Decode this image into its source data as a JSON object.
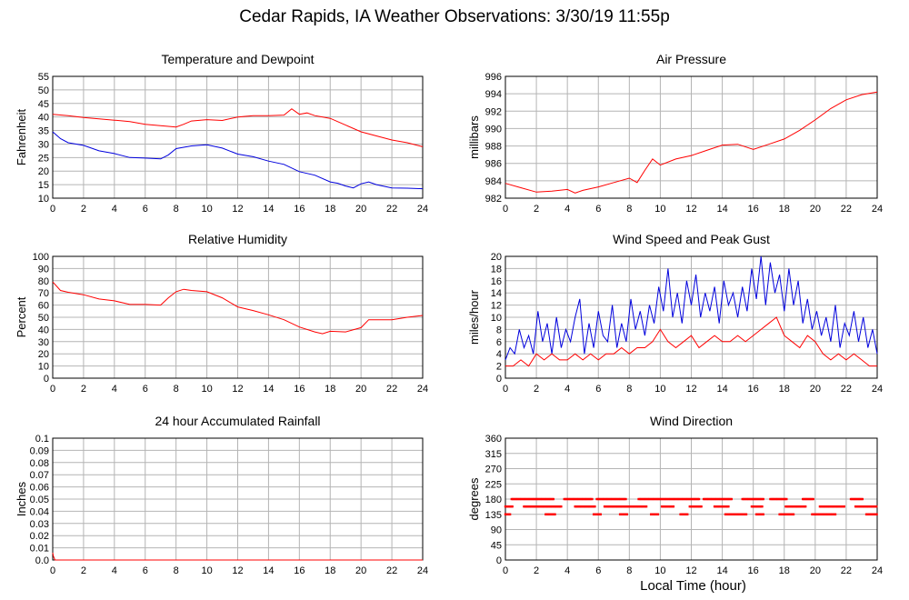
{
  "title": "Cedar Rapids, IA Weather Observations: 3/30/19 11:55p",
  "xlabel": "Local Time (hour)",
  "colors": {
    "red": "#ff0000",
    "blue": "#0000dd",
    "grid": "#b4b4b4"
  },
  "chart_data": [
    {
      "type": "line",
      "title": "Temperature and Dewpoint",
      "ylabel": "Fahrenheit",
      "xlim": [
        0,
        24
      ],
      "ylim": [
        10,
        55
      ],
      "xticks": [
        0,
        2,
        4,
        6,
        8,
        10,
        12,
        14,
        16,
        18,
        20,
        22,
        24
      ],
      "yticks": [
        10,
        15,
        20,
        25,
        30,
        35,
        40,
        45,
        50,
        55
      ],
      "ytick_labels": [
        "10",
        "15",
        "20",
        "25",
        "30",
        "35",
        "40",
        "45",
        "50",
        "55"
      ],
      "grid": true,
      "series": [
        {
          "color": "#ff0000",
          "x": [
            0,
            1,
            2,
            3,
            4,
            5,
            6,
            7,
            8,
            8.5,
            9,
            10,
            11,
            12,
            13,
            14,
            15,
            15.5,
            16,
            16.5,
            17,
            18,
            19,
            20,
            21,
            22,
            23,
            24
          ],
          "y": [
            41,
            40.5,
            39.8,
            39.3,
            38.8,
            38.3,
            37.3,
            36.8,
            36.3,
            37.3,
            38.5,
            39,
            38.7,
            40,
            40.5,
            40.5,
            40.7,
            43,
            41,
            41.5,
            40.5,
            39.5,
            37,
            34.5,
            33,
            31.5,
            30.5,
            29
          ]
        },
        {
          "color": "#0000dd",
          "x": [
            0,
            0.5,
            1,
            2,
            3,
            4,
            5,
            6,
            7,
            7.5,
            8,
            9,
            10,
            11,
            12,
            13,
            14,
            15,
            16,
            17,
            18,
            18.5,
            19,
            19.5,
            20,
            20.5,
            21,
            22,
            23,
            24
          ],
          "y": [
            34.5,
            32,
            30.5,
            29.5,
            27.5,
            26.5,
            25,
            24.8,
            24.5,
            26,
            28.3,
            29.3,
            29.7,
            28.5,
            26.3,
            25.3,
            23.7,
            22.5,
            19.8,
            18.5,
            16,
            15.5,
            14.5,
            13.8,
            15.3,
            16,
            15,
            13.8,
            13.7,
            13.5
          ]
        }
      ]
    },
    {
      "type": "line",
      "title": "Air Pressure",
      "ylabel": "millibars",
      "xlim": [
        0,
        24
      ],
      "ylim": [
        982,
        996
      ],
      "xticks": [
        0,
        2,
        4,
        6,
        8,
        10,
        12,
        14,
        16,
        18,
        20,
        22,
        24
      ],
      "yticks": [
        982,
        984,
        986,
        988,
        990,
        992,
        994,
        996
      ],
      "ytick_labels": [
        "982",
        "984",
        "986",
        "988",
        "990",
        "992",
        "994",
        "996"
      ],
      "grid": true,
      "series": [
        {
          "color": "#ff0000",
          "x": [
            0,
            1,
            2,
            3,
            4,
            4.5,
            5,
            6,
            7,
            8,
            8.5,
            9,
            9.5,
            10,
            11,
            12,
            13,
            14,
            15,
            16,
            17,
            18,
            19,
            20,
            21,
            22,
            23,
            24
          ],
          "y": [
            983.7,
            983.2,
            982.7,
            982.8,
            983,
            982.6,
            982.9,
            983.3,
            983.8,
            984.3,
            983.8,
            985.2,
            986.5,
            985.8,
            986.5,
            986.9,
            987.5,
            988.1,
            988.2,
            987.6,
            988.2,
            988.8,
            989.8,
            991,
            992.3,
            993.3,
            993.9,
            994.2
          ]
        }
      ]
    },
    {
      "type": "line",
      "title": "Relative Humidity",
      "ylabel": "Percent",
      "xlim": [
        0,
        24
      ],
      "ylim": [
        0,
        100
      ],
      "xticks": [
        0,
        2,
        4,
        6,
        8,
        10,
        12,
        14,
        16,
        18,
        20,
        22,
        24
      ],
      "yticks": [
        0,
        10,
        20,
        30,
        40,
        50,
        60,
        70,
        80,
        90,
        100
      ],
      "ytick_labels": [
        "0",
        "10",
        "20",
        "30",
        "40",
        "50",
        "60",
        "70",
        "80",
        "90",
        "100"
      ],
      "grid": true,
      "series": [
        {
          "color": "#ff0000",
          "x": [
            0,
            0.5,
            1,
            2,
            3,
            4,
            5,
            6,
            7,
            7.5,
            8,
            8.5,
            9,
            10,
            11,
            12,
            13,
            14,
            15,
            16,
            17,
            17.5,
            18,
            19,
            20,
            20.5,
            21,
            22,
            23,
            24
          ],
          "y": [
            79,
            72,
            70.5,
            68.5,
            65,
            63.5,
            60.5,
            60.5,
            60,
            66,
            71,
            73,
            72,
            71,
            66,
            58.5,
            55.5,
            52,
            48,
            42,
            38,
            36.5,
            38.5,
            38,
            41.5,
            48,
            48,
            48,
            50,
            51.5
          ]
        }
      ]
    },
    {
      "type": "line",
      "title": "Wind Speed and Peak Gust",
      "ylabel": "miles/hour",
      "xlim": [
        0,
        24
      ],
      "ylim": [
        0,
        20
      ],
      "xticks": [
        0,
        2,
        4,
        6,
        8,
        10,
        12,
        14,
        16,
        18,
        20,
        22,
        24
      ],
      "yticks": [
        0,
        2,
        4,
        6,
        8,
        10,
        12,
        14,
        16,
        18,
        20
      ],
      "ytick_labels": [
        "0",
        "2",
        "4",
        "6",
        "8",
        "10",
        "12",
        "14",
        "16",
        "18",
        "20"
      ],
      "grid": true,
      "series": [
        {
          "color": "#0000dd",
          "x": [
            0,
            0.3,
            0.6,
            0.9,
            1.2,
            1.5,
            1.8,
            2.1,
            2.4,
            2.7,
            3,
            3.3,
            3.6,
            3.9,
            4.2,
            4.5,
            4.8,
            5.1,
            5.4,
            5.7,
            6,
            6.3,
            6.6,
            6.9,
            7.2,
            7.5,
            7.8,
            8.1,
            8.4,
            8.7,
            9,
            9.3,
            9.6,
            9.9,
            10.2,
            10.5,
            10.8,
            11.1,
            11.4,
            11.7,
            12,
            12.3,
            12.6,
            12.9,
            13.2,
            13.5,
            13.8,
            14.1,
            14.4,
            14.7,
            15,
            15.3,
            15.6,
            15.9,
            16.2,
            16.5,
            16.8,
            17.1,
            17.4,
            17.7,
            18,
            18.3,
            18.6,
            18.9,
            19.2,
            19.5,
            19.8,
            20.1,
            20.4,
            20.7,
            21,
            21.3,
            21.6,
            21.9,
            22.2,
            22.5,
            22.8,
            23.1,
            23.4,
            23.7,
            24
          ],
          "y": [
            3,
            5,
            4,
            8,
            5,
            7,
            4,
            11,
            6,
            9,
            4,
            10,
            5,
            8,
            6,
            10,
            13,
            4,
            9,
            5,
            11,
            7,
            6,
            12,
            5,
            9,
            6,
            13,
            8,
            11,
            7,
            12,
            9,
            15,
            11,
            18,
            10,
            14,
            9,
            16,
            12,
            17,
            10,
            14,
            11,
            15,
            9,
            16,
            12,
            14,
            10,
            15,
            11,
            18,
            13,
            20,
            12,
            19,
            14,
            17,
            11,
            18,
            12,
            16,
            9,
            13,
            8,
            11,
            7,
            10,
            6,
            12,
            5,
            9,
            7,
            11,
            6,
            10,
            5,
            8,
            4
          ]
        },
        {
          "color": "#ff0000",
          "x": [
            0,
            0.5,
            1,
            1.5,
            2,
            2.5,
            3,
            3.5,
            4,
            4.5,
            5,
            5.5,
            6,
            6.5,
            7,
            7.5,
            8,
            8.5,
            9,
            9.5,
            10,
            10.5,
            11,
            11.5,
            12,
            12.5,
            13,
            13.5,
            14,
            14.5,
            15,
            15.5,
            16,
            16.5,
            17,
            17.5,
            18,
            18.5,
            19,
            19.5,
            20,
            20.5,
            21,
            21.5,
            22,
            22.5,
            23,
            23.5,
            24
          ],
          "y": [
            2,
            2,
            3,
            2,
            4,
            3,
            4,
            3,
            3,
            4,
            3,
            4,
            3,
            4,
            4,
            5,
            4,
            5,
            5,
            6,
            8,
            6,
            5,
            6,
            7,
            5,
            6,
            7,
            6,
            6,
            7,
            6,
            7,
            8,
            9,
            10,
            7,
            6,
            5,
            7,
            6,
            4,
            3,
            4,
            3,
            4,
            3,
            2,
            2
          ]
        }
      ]
    },
    {
      "type": "line",
      "title": "24 hour Accumulated Rainfall",
      "ylabel": "Inches",
      "xlim": [
        0,
        24
      ],
      "ylim": [
        0,
        0.1
      ],
      "xticks": [
        0,
        2,
        4,
        6,
        8,
        10,
        12,
        14,
        16,
        18,
        20,
        22,
        24
      ],
      "yticks": [
        0,
        0.01,
        0.02,
        0.03,
        0.04,
        0.05,
        0.06,
        0.07,
        0.08,
        0.09,
        0.1
      ],
      "ytick_labels": [
        "0.0",
        "0.01",
        "0.02",
        "0.03",
        "0.04",
        "0.05",
        "0.06",
        "0.07",
        "0.08",
        "0.09",
        "0.1"
      ],
      "grid": true,
      "series": [
        {
          "color": "#ff0000",
          "x": [
            0,
            0.05,
            0.15,
            24
          ],
          "y": [
            0.006,
            0.003,
            0,
            0
          ]
        }
      ]
    },
    {
      "type": "scatter",
      "title": "Wind Direction",
      "ylabel": "degrees",
      "xlim": [
        0,
        24
      ],
      "ylim": [
        0,
        360
      ],
      "xticks": [
        0,
        2,
        4,
        6,
        8,
        10,
        12,
        14,
        16,
        18,
        20,
        22,
        24
      ],
      "yticks": [
        0,
        45,
        90,
        135,
        180,
        225,
        270,
        315,
        360
      ],
      "ytick_labels": [
        "0",
        "45",
        "90",
        "135",
        "180",
        "225",
        "270",
        "315",
        "360"
      ],
      "grid": true,
      "series": [
        {
          "color": "#ff0000",
          "segments": [
            {
              "y": 180,
              "ranges": [
                [
                  0.4,
                  3.1
                ],
                [
                  3.8,
                  5.6
                ],
                [
                  5.9,
                  7.8
                ],
                [
                  8.6,
                  12.5
                ],
                [
                  12.8,
                  14.6
                ],
                [
                  15.3,
                  16.7
                ],
                [
                  17.1,
                  18.2
                ],
                [
                  19.2,
                  19.9
                ],
                [
                  22.3,
                  23.1
                ]
              ]
            },
            {
              "y": 158,
              "ranges": [
                [
                  0,
                  0.5
                ],
                [
                  1.2,
                  3.6
                ],
                [
                  4.5,
                  5.8
                ],
                [
                  6.4,
                  9.1
                ],
                [
                  10.1,
                  10.9
                ],
                [
                  11.9,
                  12.7
                ],
                [
                  13.5,
                  14.4
                ],
                [
                  15.9,
                  16.6
                ],
                [
                  18.1,
                  19.4
                ],
                [
                  20.3,
                  21.9
                ],
                [
                  22.6,
                  24
                ]
              ]
            },
            {
              "y": 135,
              "ranges": [
                [
                  0,
                  0.3
                ],
                [
                  2.6,
                  3.2
                ],
                [
                  5.7,
                  6.2
                ],
                [
                  7.4,
                  7.9
                ],
                [
                  9.4,
                  9.9
                ],
                [
                  11.3,
                  11.8
                ],
                [
                  14.2,
                  15.6
                ],
                [
                  16.2,
                  16.7
                ],
                [
                  17.7,
                  18.6
                ],
                [
                  19.8,
                  21.3
                ],
                [
                  23.3,
                  24
                ]
              ]
            }
          ]
        }
      ]
    }
  ]
}
